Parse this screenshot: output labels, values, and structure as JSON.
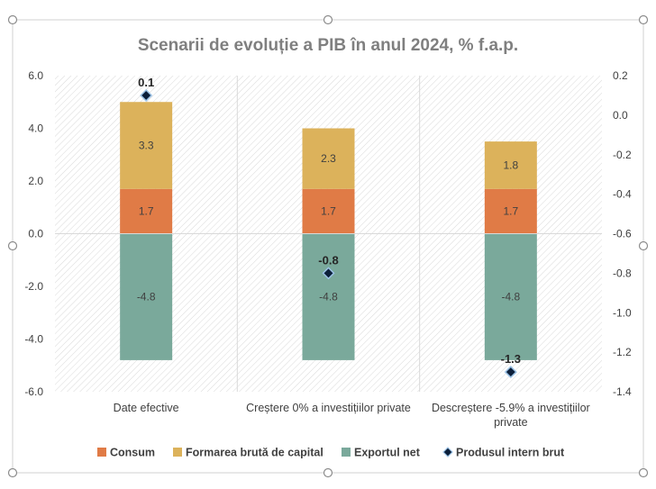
{
  "chart_data": {
    "type": "bar",
    "subtype": "stacked-bar-with-secondary-axis-markers",
    "title": "Scenarii de evoluție a PIB în anul 2024, % f.a.p.",
    "categories": [
      [
        "Date efective"
      ],
      [
        "Creștere 0% a investițiilor private"
      ],
      [
        "Descreștere -5.9% a investițiilor",
        "private"
      ]
    ],
    "series": [
      {
        "name": "Consum",
        "axis": "primary",
        "color": "#e07b46",
        "values": [
          1.7,
          1.7,
          1.7
        ]
      },
      {
        "name": "Formarea brută de capital",
        "axis": "primary",
        "color": "#dcb25b",
        "values": [
          3.3,
          2.3,
          1.8
        ]
      },
      {
        "name": "Exportul  net",
        "axis": "primary",
        "color": "#7aa99b",
        "values": [
          -4.8,
          -4.8,
          -4.8
        ]
      },
      {
        "name": "Produsul intern brut",
        "axis": "secondary",
        "marker": "diamond",
        "color": "#0b1f3a",
        "values": [
          0.1,
          -0.8,
          -1.3
        ]
      }
    ],
    "primary_axis": {
      "ylim": [
        -6.0,
        6.0
      ],
      "ticks": [
        6.0,
        4.0,
        2.0,
        0.0,
        -2.0,
        -4.0,
        -6.0
      ],
      "tick_labels": [
        "6.0",
        "4.0",
        "2.0",
        "0.0",
        "-2.0",
        "-4.0",
        "-6.0"
      ]
    },
    "secondary_axis": {
      "ylim": [
        -1.4,
        0.2
      ],
      "ticks": [
        0.2,
        0.0,
        -0.2,
        -0.4,
        -0.6,
        -0.8,
        -1.0,
        -1.2,
        -1.4
      ],
      "tick_labels": [
        "0.2",
        "0.0",
        "-0.2",
        "-0.4",
        "-0.6",
        "-0.8",
        "-1.0",
        "-1.2",
        "-1.4"
      ]
    },
    "gdp_labels": [
      "0.1",
      "-0.8",
      "-1.3"
    ],
    "legend_position": "bottom",
    "plot_pattern": "diagonal hatch"
  }
}
